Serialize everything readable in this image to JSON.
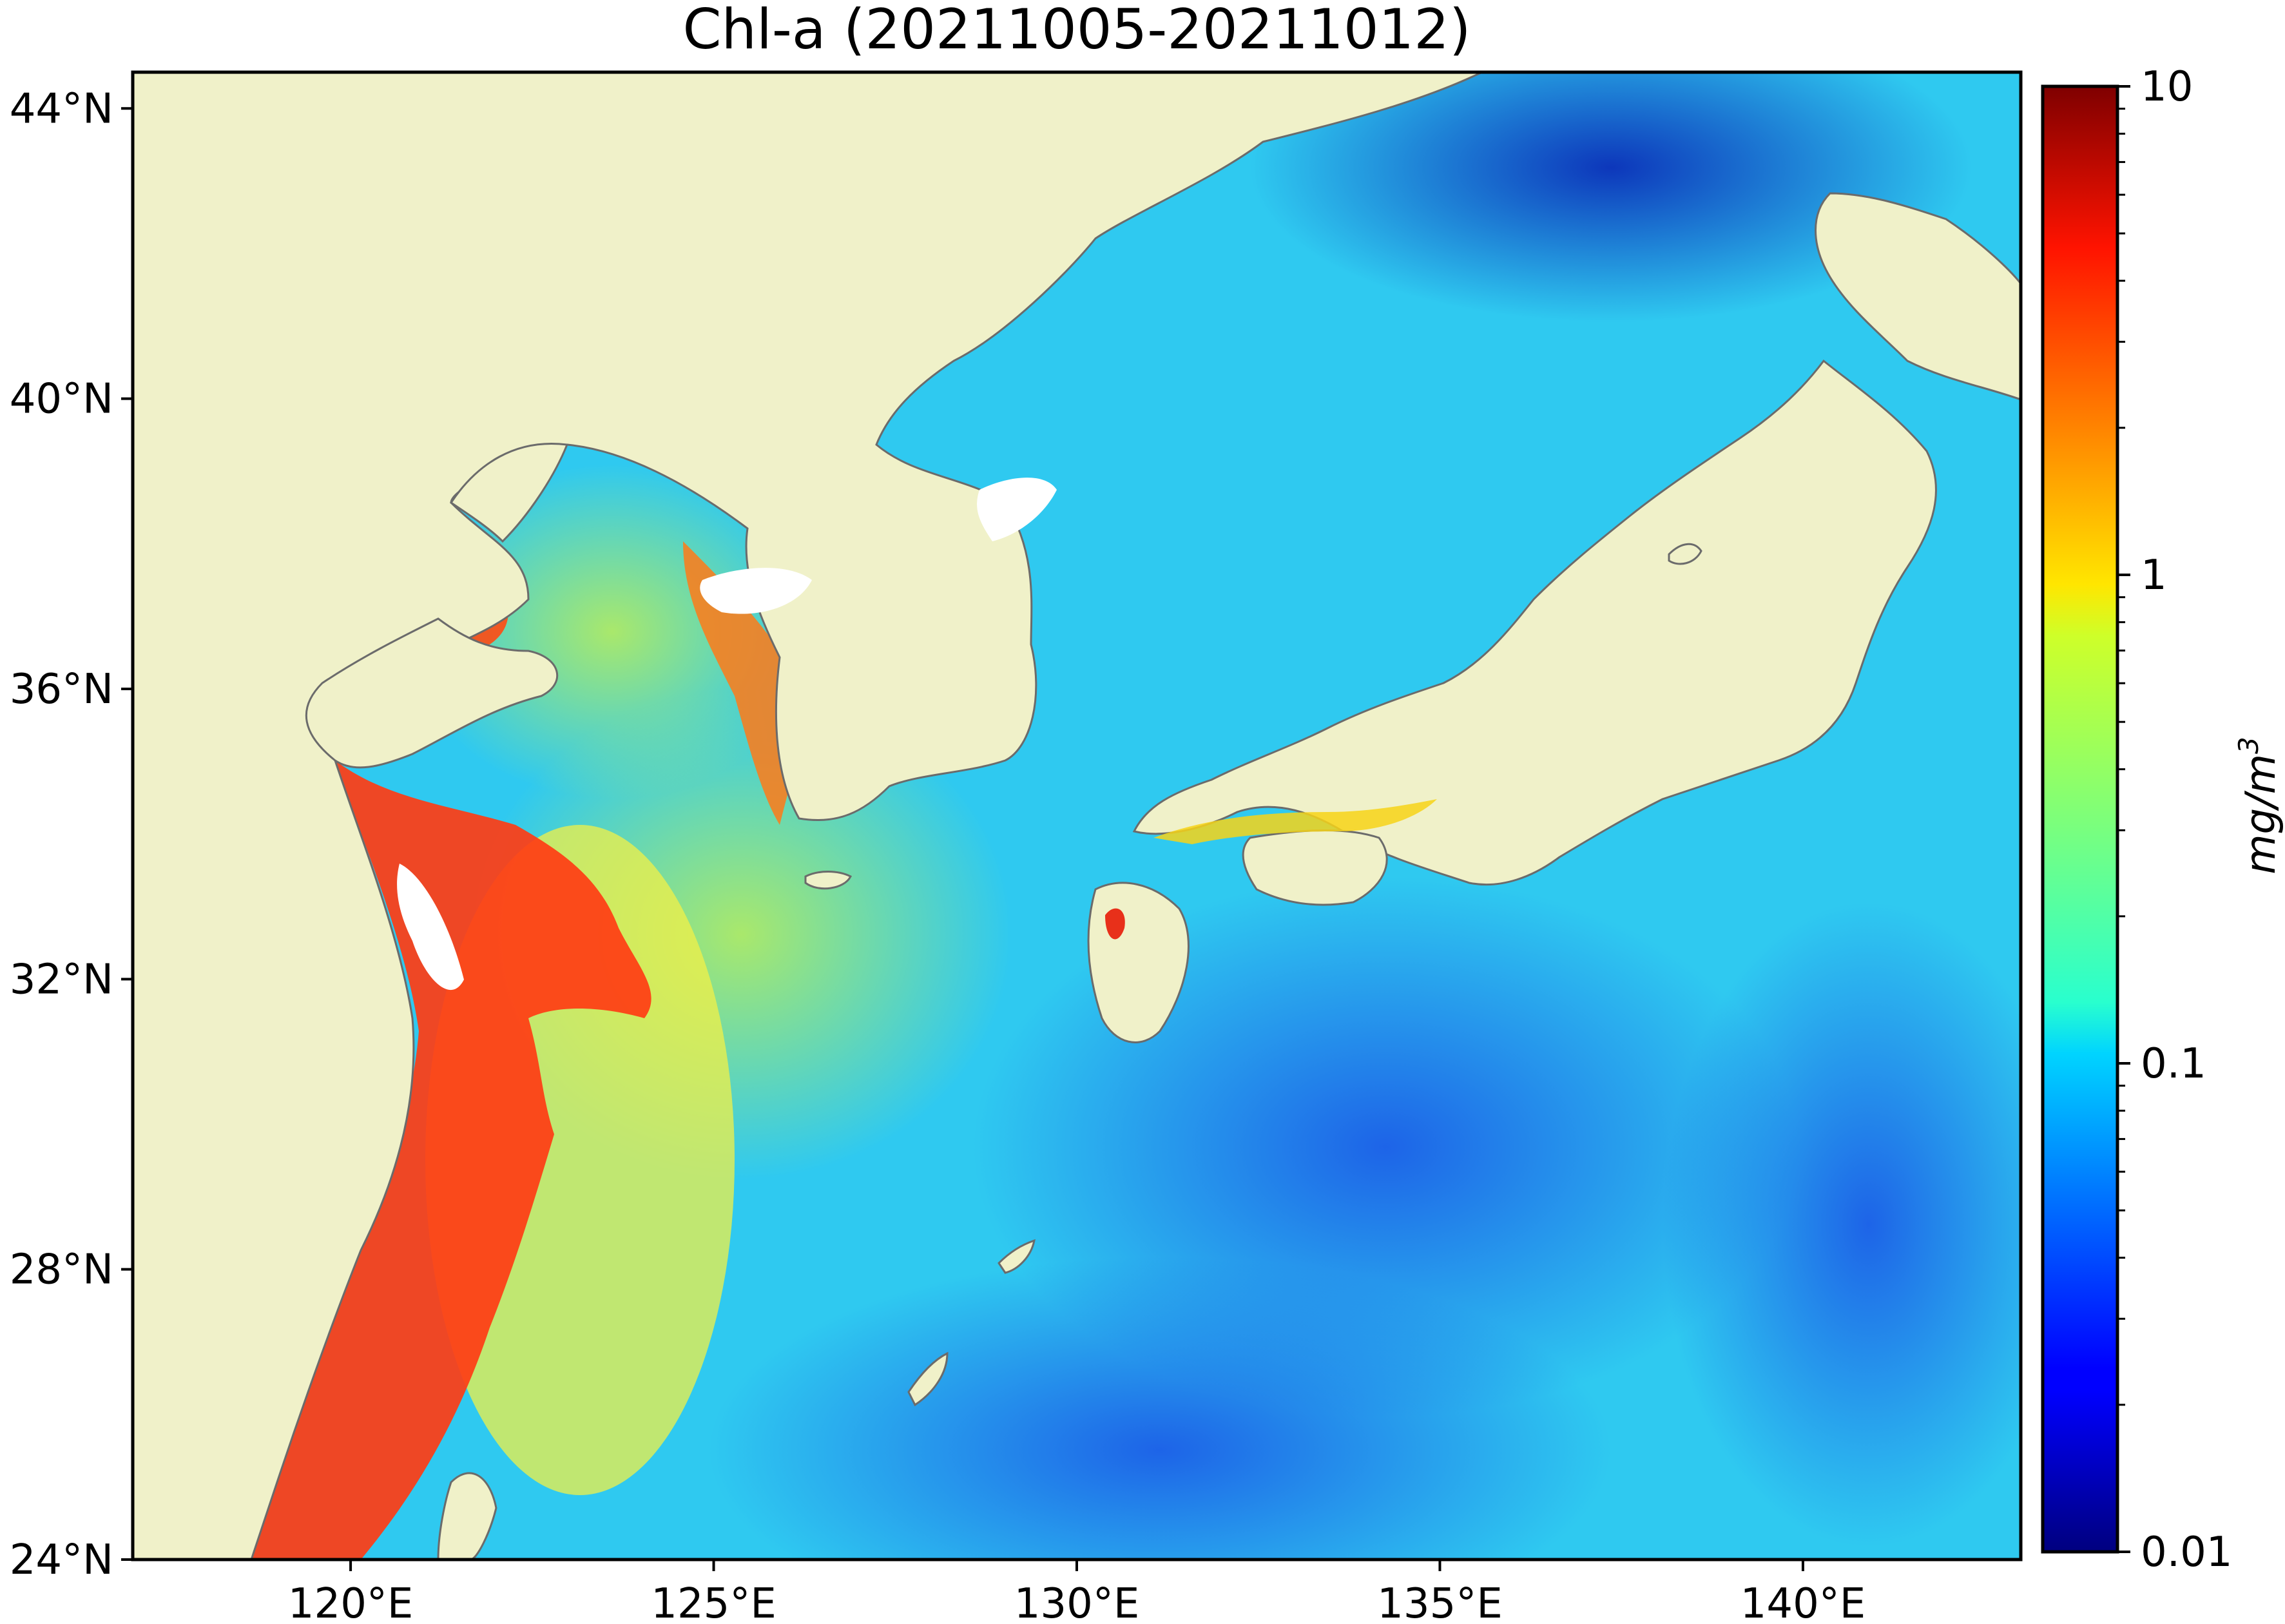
{
  "title": "Chl-a (20211005-20211012)",
  "map": {
    "lon_range": [
      117,
      143
    ],
    "lat_range": [
      24,
      44.5
    ],
    "lon_ticks": [
      {
        "value": 120,
        "label": "120°E"
      },
      {
        "value": 125,
        "label": "125°E"
      },
      {
        "value": 130,
        "label": "130°E"
      },
      {
        "value": 135,
        "label": "135°E"
      },
      {
        "value": 140,
        "label": "140°E"
      }
    ],
    "lat_ticks": [
      {
        "value": 24,
        "label": "24°N"
      },
      {
        "value": 28,
        "label": "28°N"
      },
      {
        "value": 32,
        "label": "32°N"
      },
      {
        "value": 36,
        "label": "36°N"
      },
      {
        "value": 40,
        "label": "40°N"
      },
      {
        "value": 44,
        "label": "44°N"
      }
    ],
    "land_color": "#f0f1c9",
    "coast_color": "#6b6b6b"
  },
  "colorbar": {
    "scale": "log",
    "range": [
      0.01,
      10
    ],
    "tick_labels": [
      {
        "value": 0.01,
        "label": "0.01"
      },
      {
        "value": 0.1,
        "label": "0.1"
      },
      {
        "value": 1,
        "label": "1"
      },
      {
        "value": 10,
        "label": "10"
      }
    ],
    "unit_label": "mg/m",
    "unit_sup": "3",
    "colormap": "jet"
  }
}
